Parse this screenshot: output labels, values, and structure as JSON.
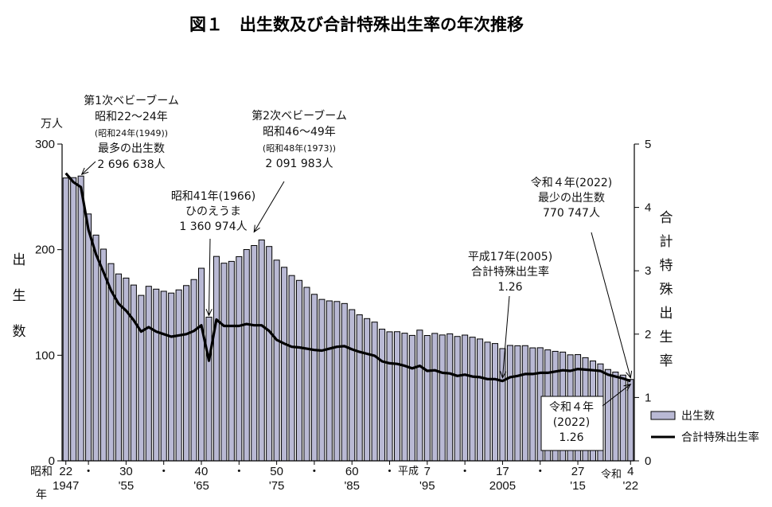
{
  "title": "図１　出生数及び合計特殊出生率の年次推移",
  "chart_data": {
    "type": "bar",
    "y_left": {
      "unit": "万人",
      "label": [
        "出",
        "生",
        "数"
      ],
      "ylim": [
        0,
        300
      ],
      "ticks": [
        0,
        100,
        200,
        300
      ]
    },
    "y_right": {
      "label": [
        "合",
        "計",
        "特",
        "殊",
        "出",
        "生",
        "率"
      ],
      "ylim": [
        0,
        5
      ],
      "ticks": [
        0,
        1,
        2,
        3,
        4,
        5
      ]
    },
    "x_tick_labels": [
      {
        "year": 1947,
        "top": "22",
        "bottom": "1947"
      },
      {
        "year": 1950,
        "top": "・",
        "bottom": ""
      },
      {
        "year": 1955,
        "top": "30",
        "bottom": "'55"
      },
      {
        "year": 1960,
        "top": "・",
        "bottom": ""
      },
      {
        "year": 1965,
        "top": "40",
        "bottom": "'65"
      },
      {
        "year": 1970,
        "top": "・",
        "bottom": ""
      },
      {
        "year": 1975,
        "top": "50",
        "bottom": "'75"
      },
      {
        "year": 1980,
        "top": "・",
        "bottom": ""
      },
      {
        "year": 1985,
        "top": "60",
        "bottom": "'85"
      },
      {
        "year": 1990,
        "top": "・",
        "bottom": ""
      },
      {
        "year": 1995,
        "top": "7",
        "bottom": "'95"
      },
      {
        "year": 2000,
        "top": "・",
        "bottom": ""
      },
      {
        "year": 2005,
        "top": "17",
        "bottom": "2005"
      },
      {
        "year": 2010,
        "top": "・",
        "bottom": ""
      },
      {
        "year": 2015,
        "top": "27",
        "bottom": "'15"
      },
      {
        "year": 2022,
        "top": "4",
        "bottom": "'22"
      }
    ],
    "era_labels": {
      "showa_top": "昭和",
      "showa_bottom": "年",
      "heisei": "平成",
      "reiwa": "令和"
    },
    "years": [
      1947,
      1948,
      1949,
      1950,
      1951,
      1952,
      1953,
      1954,
      1955,
      1956,
      1957,
      1958,
      1959,
      1960,
      1961,
      1962,
      1963,
      1964,
      1965,
      1966,
      1967,
      1968,
      1969,
      1970,
      1971,
      1972,
      1973,
      1974,
      1975,
      1976,
      1977,
      1978,
      1979,
      1980,
      1981,
      1982,
      1983,
      1984,
      1985,
      1986,
      1987,
      1988,
      1989,
      1990,
      1991,
      1992,
      1993,
      1994,
      1995,
      1996,
      1997,
      1998,
      1999,
      2000,
      2001,
      2002,
      2003,
      2004,
      2005,
      2006,
      2007,
      2008,
      2009,
      2010,
      2011,
      2012,
      2013,
      2014,
      2015,
      2016,
      2017,
      2018,
      2019,
      2020,
      2021,
      2022
    ],
    "series": [
      {
        "name": "出生数",
        "axis": "left",
        "type": "bar",
        "values": [
          267.9,
          268.2,
          269.7,
          233.8,
          213.8,
          200.5,
          186.8,
          177.0,
          173.1,
          166.5,
          156.7,
          165.3,
          162.6,
          160.6,
          158.9,
          161.9,
          166.0,
          171.7,
          182.4,
          136.1,
          193.6,
          187.2,
          188.9,
          193.4,
          200.1,
          203.9,
          209.2,
          203.0,
          190.1,
          183.3,
          175.5,
          170.9,
          164.3,
          157.7,
          152.9,
          151.5,
          150.9,
          149.0,
          143.2,
          138.3,
          134.7,
          131.4,
          124.7,
          122.2,
          122.3,
          120.9,
          118.8,
          123.8,
          118.7,
          120.7,
          119.2,
          120.3,
          117.8,
          119.1,
          117.1,
          115.4,
          112.4,
          111.1,
          106.3,
          109.3,
          109.0,
          109.1,
          107.0,
          107.1,
          105.1,
          103.7,
          103.0,
          100.4,
          100.6,
          97.7,
          94.6,
          91.8,
          86.5,
          84.1,
          81.2,
          77.1
        ]
      },
      {
        "name": "合計特殊出生率",
        "axis": "right",
        "type": "line",
        "values": [
          4.54,
          4.4,
          4.32,
          3.65,
          3.26,
          2.98,
          2.69,
          2.48,
          2.37,
          2.22,
          2.04,
          2.11,
          2.04,
          2.0,
          1.96,
          1.98,
          2.0,
          2.05,
          2.14,
          1.58,
          2.23,
          2.13,
          2.13,
          2.13,
          2.16,
          2.14,
          2.14,
          2.05,
          1.91,
          1.85,
          1.8,
          1.79,
          1.77,
          1.75,
          1.74,
          1.77,
          1.8,
          1.81,
          1.76,
          1.72,
          1.69,
          1.66,
          1.57,
          1.54,
          1.53,
          1.5,
          1.46,
          1.5,
          1.42,
          1.43,
          1.39,
          1.38,
          1.34,
          1.36,
          1.33,
          1.32,
          1.29,
          1.29,
          1.26,
          1.32,
          1.34,
          1.37,
          1.37,
          1.39,
          1.39,
          1.41,
          1.43,
          1.42,
          1.45,
          1.44,
          1.43,
          1.42,
          1.36,
          1.33,
          1.3,
          1.26
        ]
      }
    ],
    "annotations": [
      {
        "id": "boom1",
        "lines": [
          "第1次ベビーブーム",
          "昭和22～24年",
          "(昭和24年(1949))",
          "最多の出生数",
          "2 696 638人"
        ]
      },
      {
        "id": "boom2",
        "lines": [
          "第2次ベビーブーム",
          "昭和46～49年",
          "(昭和48年(1973))",
          "2 091 983人"
        ]
      },
      {
        "id": "hinoe",
        "lines": [
          "昭和41年(1966)",
          "ひのえうま",
          "1 360 974人"
        ]
      },
      {
        "id": "h17",
        "lines": [
          "平成17年(2005)",
          "合計特殊出生率",
          "1.26"
        ]
      },
      {
        "id": "r4min",
        "lines": [
          "令和４年(2022)",
          "最少の出生数",
          "770 747人"
        ]
      },
      {
        "id": "r4box",
        "lines": [
          "令和４年",
          "(2022)",
          "1.26"
        ]
      }
    ],
    "legend": {
      "position": "bottom-right",
      "items": [
        "出生数",
        "合計特殊出生率"
      ]
    }
  }
}
